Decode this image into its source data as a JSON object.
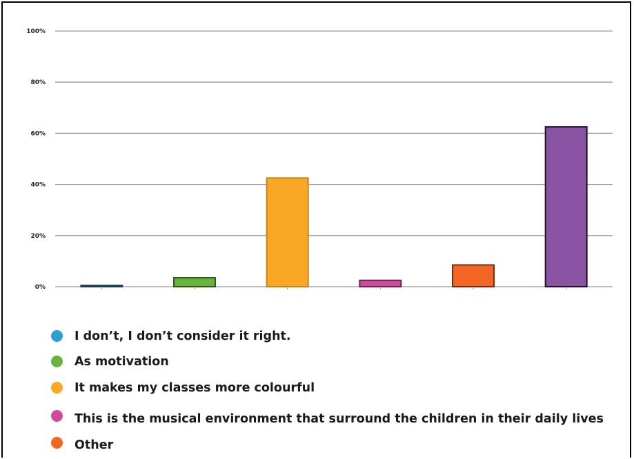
{
  "chart_data": {
    "type": "bar",
    "y_ticks": [
      "0%",
      "20%",
      "40%",
      "60%",
      "80%",
      "100%"
    ],
    "ylim": [
      0,
      100
    ],
    "grid": true,
    "legend_position": "bottom",
    "categories": [
      "I don’t, I don’t consider it right.",
      "As motivation",
      "It makes my classes more colourful",
      "This is the musical environment that surround the children in their daily lives",
      "Other",
      ""
    ],
    "values": [
      0.5,
      3.5,
      42.5,
      2.5,
      8.5,
      62.5
    ],
    "colors": [
      "#2d9fd6",
      "#6ab33e",
      "#f9a826",
      "#cc4b9b",
      "#f26522",
      "#8b53a4"
    ],
    "border_colors": [
      "#1a3d5c",
      "#2f5a1a",
      "#c98418",
      "#6b1f52",
      "#7a2810",
      "#1e0f2a"
    ],
    "legend": [
      {
        "label": "I don’t, I don’t consider it right.",
        "color": "#2d9fd6"
      },
      {
        "label": "As motivation",
        "color": "#6ab33e"
      },
      {
        "label": "It makes my classes more colourful",
        "color": "#f9a826"
      },
      {
        "label": "This is the musical environment that surround the children in their daily lives",
        "color": "#cc4b9b"
      },
      {
        "label": "Other",
        "color": "#f26522"
      }
    ]
  }
}
